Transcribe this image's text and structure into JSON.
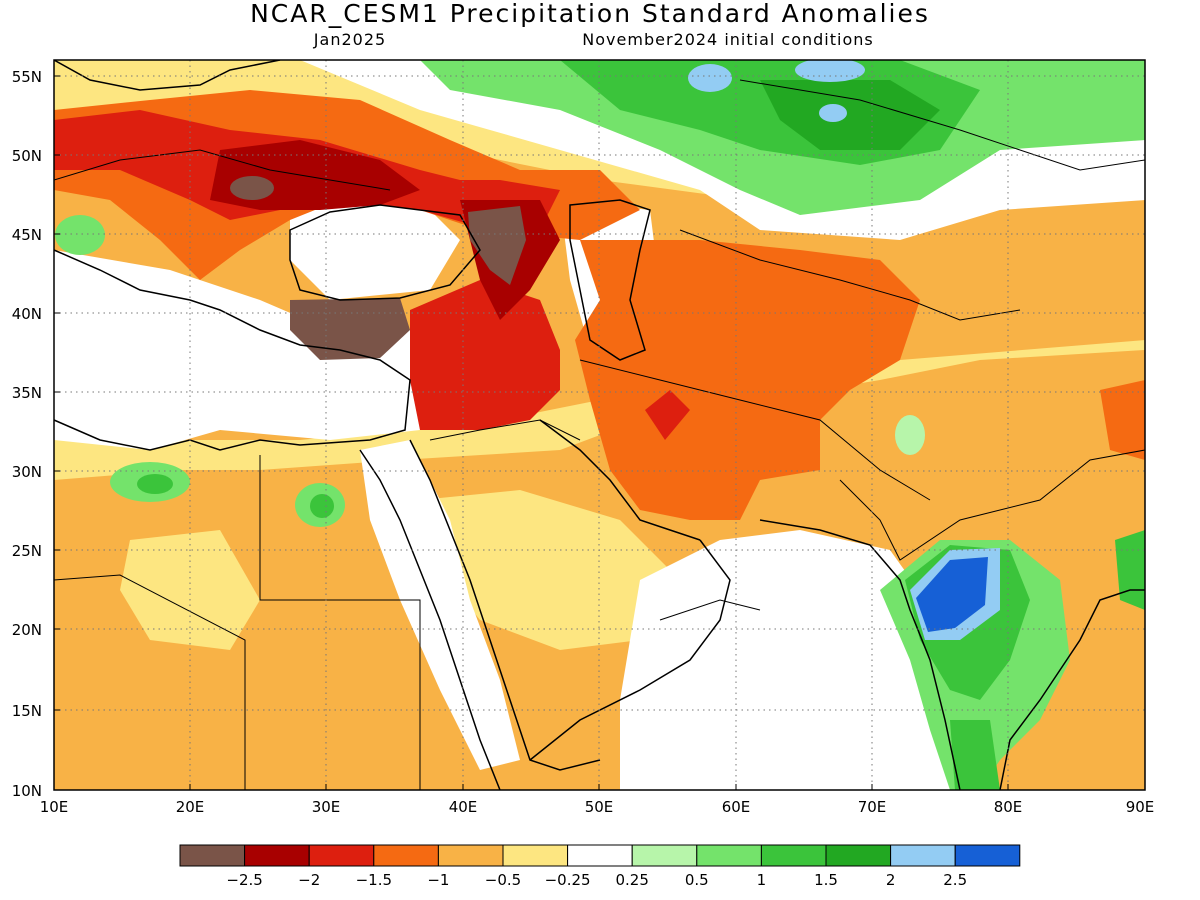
{
  "title": "NCAR_CESM1 Precipitation Standard Anomalies",
  "valid_month": "Jan2025",
  "init_conditions": "November2024 initial conditions",
  "map": {
    "lat_labels": [
      "55N",
      "50N",
      "45N",
      "40N",
      "35N",
      "30N",
      "25N",
      "20N",
      "15N",
      "10N"
    ],
    "lon_labels": [
      "10E",
      "20E",
      "30E",
      "40E",
      "50E",
      "60E",
      "70E",
      "80E",
      "90E"
    ],
    "lat_range": [
      10,
      56.5
    ],
    "lon_range": [
      10,
      90
    ],
    "grid": true
  },
  "legend": {
    "colors": [
      "#7a5448",
      "#a80000",
      "#dd1f0f",
      "#f56a12",
      "#f8b246",
      "#fde681",
      "#ffffff",
      "#b7f5aa",
      "#74e36b",
      "#3bc43b",
      "#22a822",
      "#93ccf3",
      "#1660d6"
    ],
    "labels": [
      "−2.5",
      "−2",
      "−1.5",
      "−1",
      "−0.5",
      "−0.25",
      "0.25",
      "0.5",
      "1",
      "1.5",
      "2",
      "2.5"
    ]
  }
}
